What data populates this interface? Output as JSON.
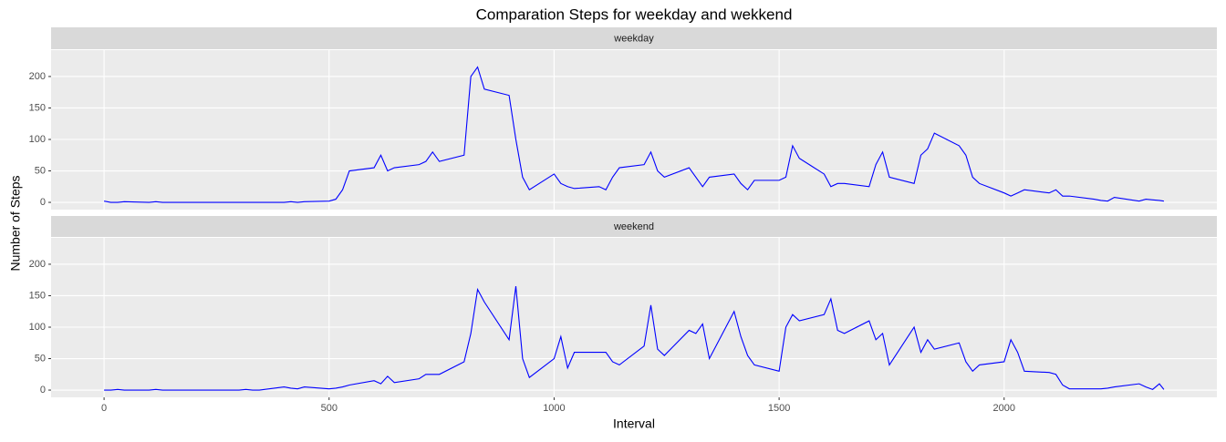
{
  "chart_data": {
    "type": "line",
    "title": "Comparation Steps for weekday and wekkend",
    "x_label": "Interval",
    "y_label": "Number of Steps",
    "x": [
      0,
      15,
      30,
      45,
      100,
      115,
      130,
      145,
      200,
      215,
      230,
      245,
      300,
      315,
      330,
      345,
      400,
      415,
      430,
      445,
      500,
      515,
      530,
      545,
      600,
      615,
      630,
      645,
      700,
      715,
      730,
      745,
      800,
      815,
      830,
      845,
      900,
      915,
      930,
      945,
      1000,
      1015,
      1030,
      1045,
      1100,
      1115,
      1130,
      1145,
      1200,
      1215,
      1230,
      1245,
      1300,
      1315,
      1330,
      1345,
      1400,
      1415,
      1430,
      1445,
      1500,
      1515,
      1530,
      1545,
      1600,
      1615,
      1630,
      1645,
      1700,
      1715,
      1730,
      1745,
      1800,
      1815,
      1830,
      1845,
      1900,
      1915,
      1930,
      1945,
      2000,
      2015,
      2030,
      2045,
      2100,
      2115,
      2130,
      2145,
      2200,
      2215,
      2230,
      2245,
      2300,
      2315,
      2330,
      2345,
      2355
    ],
    "series": [
      {
        "name": "weekday",
        "color": "#0000ff",
        "values": [
          2,
          0,
          0,
          1,
          0,
          1,
          0,
          0,
          0,
          0,
          0,
          0,
          0,
          0,
          0,
          0,
          0,
          1,
          0,
          1,
          2,
          5,
          20,
          50,
          55,
          75,
          50,
          55,
          60,
          65,
          80,
          65,
          75,
          200,
          215,
          180,
          170,
          100,
          40,
          20,
          45,
          30,
          25,
          22,
          25,
          20,
          40,
          55,
          60,
          80,
          50,
          40,
          55,
          40,
          25,
          40,
          45,
          30,
          20,
          35,
          35,
          40,
          90,
          70,
          45,
          25,
          30,
          30,
          25,
          60,
          80,
          40,
          30,
          75,
          85,
          110,
          90,
          75,
          40,
          30,
          15,
          10,
          15,
          20,
          15,
          20,
          10,
          10,
          5,
          3,
          2,
          8,
          2,
          5,
          4,
          3,
          2
        ]
      },
      {
        "name": "weekend",
        "color": "#0000ff",
        "values": [
          0,
          0,
          1,
          0,
          0,
          1,
          0,
          0,
          0,
          0,
          0,
          0,
          0,
          1,
          0,
          0,
          5,
          3,
          2,
          5,
          2,
          3,
          5,
          8,
          15,
          10,
          22,
          12,
          18,
          25,
          25,
          25,
          45,
          90,
          160,
          140,
          80,
          165,
          50,
          20,
          50,
          85,
          35,
          60,
          60,
          60,
          45,
          40,
          70,
          135,
          65,
          55,
          95,
          90,
          105,
          50,
          125,
          85,
          55,
          40,
          30,
          100,
          120,
          110,
          120,
          145,
          95,
          90,
          110,
          80,
          90,
          40,
          100,
          60,
          80,
          65,
          75,
          45,
          30,
          40,
          45,
          80,
          60,
          30,
          28,
          25,
          8,
          2,
          2,
          2,
          3,
          5,
          10,
          5,
          1,
          10,
          1
        ]
      }
    ],
    "xlim": [
      -117.75,
      2472.75
    ],
    "xticks": [
      0,
      500,
      1000,
      1500,
      2000
    ],
    "ylim": [
      -11.52,
      241.9
    ],
    "yticks": [
      0,
      50,
      100,
      150,
      200
    ],
    "grid": true
  }
}
